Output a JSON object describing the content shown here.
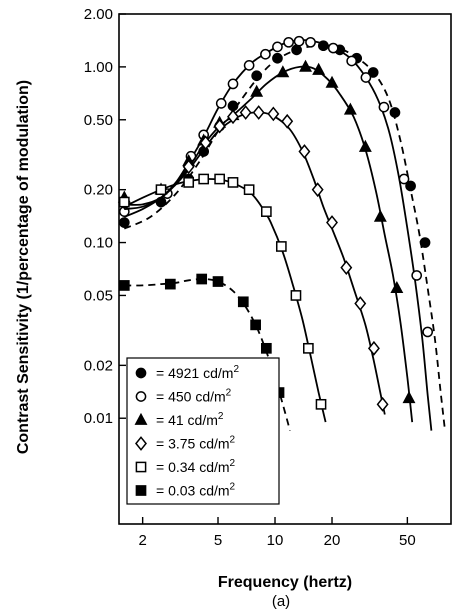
{
  "chart_data": {
    "type": "line",
    "xlabel": "Frequency (hertz)",
    "ylabel": "Contrast Sensitivity (1/percentage of modulation)",
    "caption": "(a)",
    "x_scale": "log",
    "y_scale": "log",
    "xlim": [
      1.5,
      85
    ],
    "ylim": [
      0.0025,
      2.0
    ],
    "x_ticks": [
      {
        "value": 2,
        "label": "2"
      },
      {
        "value": 5,
        "label": "5"
      },
      {
        "value": 10,
        "label": "10"
      },
      {
        "value": 20,
        "label": "20"
      },
      {
        "value": 50,
        "label": "50"
      }
    ],
    "y_ticks": [
      {
        "value": 2.0,
        "label": "2.00"
      },
      {
        "value": 1.0,
        "label": "1.00"
      },
      {
        "value": 0.5,
        "label": "0.50"
      },
      {
        "value": 0.2,
        "label": "0.20"
      },
      {
        "value": 0.1,
        "label": "0.10"
      },
      {
        "value": 0.05,
        "label": "0.05"
      },
      {
        "value": 0.02,
        "label": "0.02"
      },
      {
        "value": 0.01,
        "label": "0.01"
      }
    ],
    "grid": false,
    "legend_position": "bottom-left",
    "series": [
      {
        "name": "4921 cd/m²",
        "legend_value": "= 4921 cd/m",
        "marker": "filled-circle",
        "dash": true,
        "points": [
          [
            1.6,
            0.13
          ],
          [
            2.5,
            0.17
          ],
          [
            3.5,
            0.23
          ],
          [
            4.2,
            0.33
          ],
          [
            5.1,
            0.46
          ],
          [
            6,
            0.6
          ],
          [
            8,
            0.89
          ],
          [
            10.3,
            1.12
          ],
          [
            13,
            1.25
          ],
          [
            18,
            1.32
          ],
          [
            22,
            1.25
          ],
          [
            27,
            1.12
          ],
          [
            33,
            0.93
          ],
          [
            43,
            0.55
          ],
          [
            52,
            0.21
          ],
          [
            62,
            0.1
          ]
        ],
        "curve": [
          [
            1.6,
            0.12
          ],
          [
            2.2,
            0.14
          ],
          [
            3,
            0.19
          ],
          [
            4,
            0.29
          ],
          [
            5,
            0.43
          ],
          [
            6,
            0.56
          ],
          [
            8,
            0.85
          ],
          [
            10,
            1.08
          ],
          [
            13,
            1.25
          ],
          [
            17,
            1.32
          ],
          [
            22,
            1.27
          ],
          [
            28,
            1.1
          ],
          [
            34,
            0.9
          ],
          [
            40,
            0.65
          ],
          [
            46,
            0.38
          ],
          [
            52,
            0.2
          ],
          [
            58,
            0.11
          ],
          [
            64,
            0.055
          ],
          [
            70,
            0.028
          ],
          [
            75,
            0.014
          ],
          [
            79,
            0.0085
          ]
        ]
      },
      {
        "name": "450 cd/m²",
        "legend_value": "= 450 cd/m",
        "marker": "open-circle",
        "dash": false,
        "points": [
          [
            1.6,
            0.15
          ],
          [
            2.7,
            0.19
          ],
          [
            3.6,
            0.31
          ],
          [
            4.2,
            0.41
          ],
          [
            5.2,
            0.62
          ],
          [
            6,
            0.8
          ],
          [
            7.3,
            1.02
          ],
          [
            8.9,
            1.18
          ],
          [
            10.3,
            1.3
          ],
          [
            11.8,
            1.38
          ],
          [
            13.4,
            1.4
          ],
          [
            15.4,
            1.38
          ],
          [
            20.3,
            1.28
          ],
          [
            25.4,
            1.08
          ],
          [
            30.2,
            0.87
          ],
          [
            37.6,
            0.59
          ],
          [
            48,
            0.23
          ],
          [
            56,
            0.065
          ],
          [
            64,
            0.031
          ]
        ],
        "curve": [
          [
            1.6,
            0.14
          ],
          [
            2,
            0.155
          ],
          [
            2.5,
            0.18
          ],
          [
            3,
            0.22
          ],
          [
            3.6,
            0.3
          ],
          [
            4.2,
            0.4
          ],
          [
            5,
            0.58
          ],
          [
            6,
            0.8
          ],
          [
            7.5,
            1.05
          ],
          [
            9,
            1.2
          ],
          [
            11,
            1.35
          ],
          [
            13.5,
            1.42
          ],
          [
            16,
            1.4
          ],
          [
            20,
            1.3
          ],
          [
            25,
            1.12
          ],
          [
            30,
            0.88
          ],
          [
            35,
            0.65
          ],
          [
            40,
            0.43
          ],
          [
            45,
            0.24
          ],
          [
            50,
            0.12
          ],
          [
            55,
            0.06
          ],
          [
            60,
            0.028
          ],
          [
            64,
            0.0135
          ],
          [
            67,
            0.0085
          ]
        ]
      },
      {
        "name": "41 cd/m²",
        "legend_value": "= 41 cd/m",
        "marker": "filled-triangle",
        "dash": false,
        "points": [
          [
            1.6,
            0.18
          ],
          [
            2.5,
            0.2
          ],
          [
            3.5,
            0.29
          ],
          [
            4.2,
            0.38
          ],
          [
            5.1,
            0.48
          ],
          [
            6,
            0.53
          ],
          [
            8,
            0.72
          ],
          [
            11,
            0.93
          ],
          [
            14.5,
            1.0
          ],
          [
            17,
            0.96
          ],
          [
            20,
            0.81
          ],
          [
            25,
            0.57
          ],
          [
            30,
            0.35
          ],
          [
            36,
            0.14
          ],
          [
            44,
            0.055
          ],
          [
            51,
            0.013
          ]
        ],
        "curve": [
          [
            1.6,
            0.155
          ],
          [
            2,
            0.16
          ],
          [
            2.5,
            0.18
          ],
          [
            3,
            0.22
          ],
          [
            3.6,
            0.28
          ],
          [
            4.2,
            0.36
          ],
          [
            5,
            0.45
          ],
          [
            6,
            0.53
          ],
          [
            7.5,
            0.66
          ],
          [
            9,
            0.8
          ],
          [
            11,
            0.93
          ],
          [
            13.5,
            1.0
          ],
          [
            16,
            0.98
          ],
          [
            19,
            0.85
          ],
          [
            22,
            0.7
          ],
          [
            26,
            0.52
          ],
          [
            30,
            0.34
          ],
          [
            34,
            0.2
          ],
          [
            38,
            0.11
          ],
          [
            42,
            0.065
          ],
          [
            46,
            0.035
          ],
          [
            50,
            0.017
          ],
          [
            53,
            0.0095
          ]
        ]
      },
      {
        "name": "3.75 cd/m²",
        "legend_value": "= 3.75 cd/m",
        "marker": "open-diamond",
        "dash": false,
        "points": [
          [
            1.6,
            0.17
          ],
          [
            3.5,
            0.27
          ],
          [
            4.3,
            0.37
          ],
          [
            5.1,
            0.46
          ],
          [
            6,
            0.52
          ],
          [
            7,
            0.55
          ],
          [
            8.2,
            0.55
          ],
          [
            9.8,
            0.54
          ],
          [
            11.6,
            0.49
          ],
          [
            14.3,
            0.33
          ],
          [
            16.8,
            0.2
          ],
          [
            20,
            0.13
          ],
          [
            23.8,
            0.072
          ],
          [
            28.2,
            0.045
          ],
          [
            33.3,
            0.025
          ],
          [
            37,
            0.012
          ]
        ],
        "curve": [
          [
            1.6,
            0.165
          ],
          [
            2,
            0.165
          ],
          [
            2.5,
            0.18
          ],
          [
            3,
            0.215
          ],
          [
            3.6,
            0.27
          ],
          [
            4.3,
            0.35
          ],
          [
            5,
            0.43
          ],
          [
            6,
            0.5
          ],
          [
            7,
            0.54
          ],
          [
            8.5,
            0.55
          ],
          [
            10,
            0.52
          ],
          [
            12,
            0.44
          ],
          [
            14,
            0.33
          ],
          [
            16,
            0.23
          ],
          [
            18,
            0.16
          ],
          [
            20,
            0.12
          ],
          [
            23,
            0.082
          ],
          [
            26,
            0.055
          ],
          [
            30,
            0.034
          ],
          [
            33,
            0.022
          ],
          [
            36,
            0.014
          ],
          [
            38,
            0.0105
          ]
        ]
      },
      {
        "name": "0.34 cd/m²",
        "legend_value": "= 0.34 cd/m",
        "marker": "open-square",
        "dash": false,
        "points": [
          [
            1.6,
            0.17
          ],
          [
            2.5,
            0.2
          ],
          [
            3.5,
            0.22
          ],
          [
            4.2,
            0.23
          ],
          [
            5.1,
            0.23
          ],
          [
            6,
            0.22
          ],
          [
            7.3,
            0.2
          ],
          [
            9,
            0.15
          ],
          [
            10.8,
            0.095
          ],
          [
            12.9,
            0.05
          ],
          [
            15,
            0.025
          ],
          [
            17.5,
            0.012
          ]
        ],
        "curve": [
          [
            1.6,
            0.16
          ],
          [
            2,
            0.18
          ],
          [
            2.5,
            0.2
          ],
          [
            3,
            0.215
          ],
          [
            3.6,
            0.225
          ],
          [
            4.5,
            0.23
          ],
          [
            5.5,
            0.225
          ],
          [
            6.5,
            0.21
          ],
          [
            7.5,
            0.19
          ],
          [
            8.5,
            0.16
          ],
          [
            9.5,
            0.13
          ],
          [
            11,
            0.088
          ],
          [
            12.5,
            0.056
          ],
          [
            14,
            0.036
          ],
          [
            15.5,
            0.022
          ],
          [
            17,
            0.014
          ],
          [
            18.5,
            0.0095
          ]
        ]
      },
      {
        "name": "0.03 cd/m²",
        "legend_value": "= 0.03 cd/m",
        "marker": "filled-square",
        "dash": true,
        "points": [
          [
            1.6,
            0.057
          ],
          [
            2.8,
            0.058
          ],
          [
            4.1,
            0.062
          ],
          [
            5,
            0.06
          ],
          [
            6.8,
            0.046
          ],
          [
            7.9,
            0.034
          ],
          [
            9,
            0.025
          ],
          [
            10.5,
            0.014
          ]
        ],
        "curve": [
          [
            1.6,
            0.057
          ],
          [
            2,
            0.057
          ],
          [
            2.5,
            0.058
          ],
          [
            3,
            0.059
          ],
          [
            3.5,
            0.061
          ],
          [
            4.2,
            0.062
          ],
          [
            5,
            0.06
          ],
          [
            6,
            0.053
          ],
          [
            7,
            0.043
          ],
          [
            8,
            0.033
          ],
          [
            9,
            0.024
          ],
          [
            10,
            0.017
          ],
          [
            11,
            0.012
          ],
          [
            12,
            0.0085
          ]
        ]
      }
    ]
  }
}
